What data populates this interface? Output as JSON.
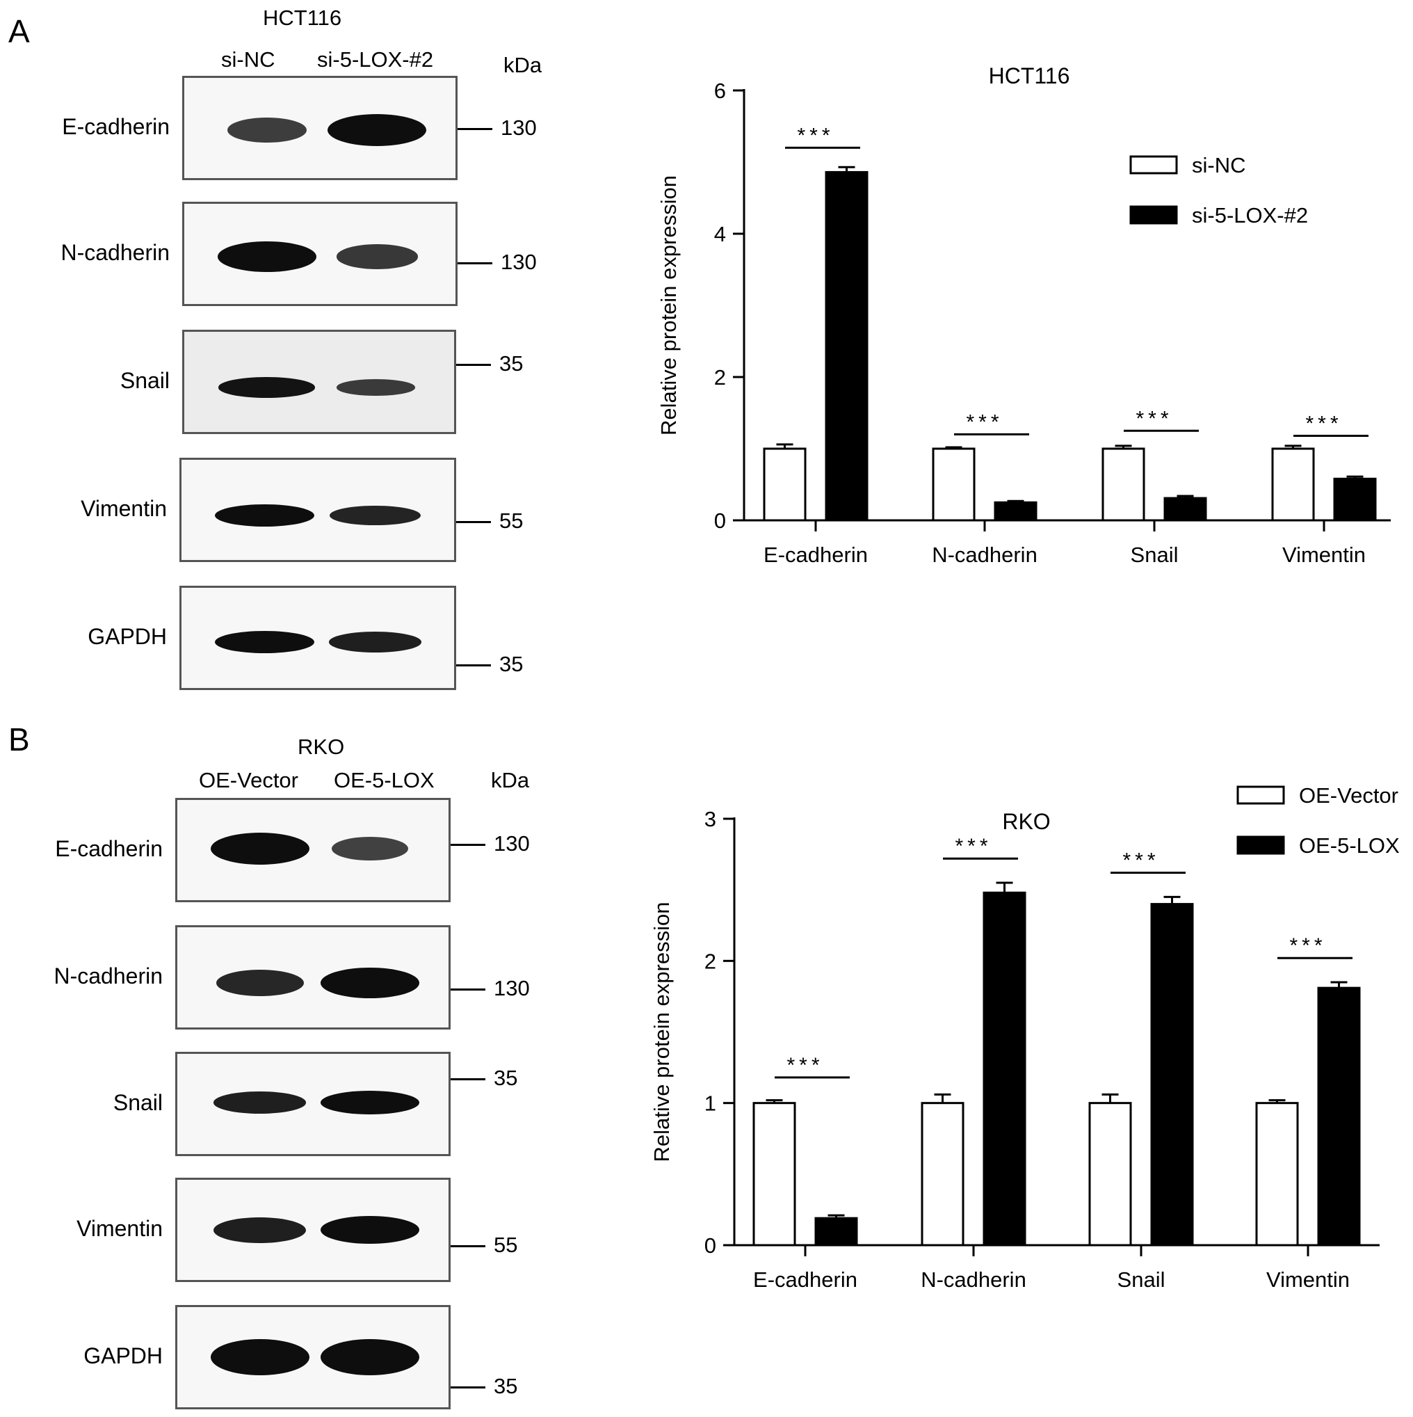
{
  "panel_a": {
    "letter": "A",
    "cell_line": "HCT116",
    "lanes": [
      "si-NC",
      "si-5-LOX-#2"
    ],
    "kda_label": "kDa",
    "blots": [
      {
        "protein": "E-cadherin",
        "marker": "130",
        "bands": [
          0.55,
          1.0
        ]
      },
      {
        "protein": "N-cadherin",
        "marker": "130",
        "bands": [
          1.0,
          0.6
        ]
      },
      {
        "protein": "Snail",
        "marker": "35",
        "bands": [
          0.95,
          0.55
        ]
      },
      {
        "protein": "Vimentin",
        "marker": "55",
        "bands": [
          1.0,
          0.8
        ]
      },
      {
        "protein": "GAPDH",
        "marker": "35",
        "bands": [
          1.0,
          0.85
        ]
      }
    ]
  },
  "panel_b": {
    "letter": "B",
    "cell_line": "RKO",
    "lanes": [
      "OE-Vector",
      "OE-5-LOX"
    ],
    "kda_label": "kDa",
    "blots": [
      {
        "protein": "E-cadherin",
        "marker": "130",
        "bands": [
          1.0,
          0.5
        ]
      },
      {
        "protein": "N-cadherin",
        "marker": "130",
        "bands": [
          0.75,
          1.0
        ]
      },
      {
        "protein": "Snail",
        "marker": "35",
        "bands": [
          0.85,
          1.0
        ]
      },
      {
        "protein": "Vimentin",
        "marker": "55",
        "bands": [
          0.85,
          1.0
        ]
      },
      {
        "protein": "GAPDH",
        "marker": "35",
        "bands": [
          1.0,
          1.0
        ]
      }
    ]
  },
  "chart_data": [
    {
      "type": "bar",
      "title": "HCT116",
      "ylabel": "Relative protein expression",
      "xlabel": "",
      "ylim": [
        0,
        6
      ],
      "yticks": [
        0,
        2,
        4,
        6
      ],
      "categories": [
        "E-cadherin",
        "N-cadherin",
        "Snail",
        "Vimentin"
      ],
      "series": [
        {
          "name": "si-NC",
          "values": [
            1.0,
            1.0,
            1.0,
            1.0
          ],
          "errors": [
            0.06,
            0.02,
            0.04,
            0.04
          ],
          "color": "#ffffff"
        },
        {
          "name": "si-5-LOX-#2",
          "values": [
            4.86,
            0.25,
            0.31,
            0.58
          ],
          "errors": [
            0.07,
            0.02,
            0.03,
            0.03
          ],
          "color": "#000000"
        }
      ],
      "significance": [
        "***",
        "***",
        "***",
        "***"
      ],
      "sig_levels": [
        5.2,
        1.2,
        1.25,
        1.18
      ],
      "legend_position": "top-right"
    },
    {
      "type": "bar",
      "title": "RKO",
      "ylabel": "Relative protein expression",
      "xlabel": "",
      "ylim": [
        0,
        3
      ],
      "yticks": [
        0,
        1,
        2,
        3
      ],
      "categories": [
        "E-cadherin",
        "N-cadherin",
        "Snail",
        "Vimentin"
      ],
      "series": [
        {
          "name": "OE-Vector",
          "values": [
            1.0,
            1.0,
            1.0,
            1.0
          ],
          "errors": [
            0.02,
            0.06,
            0.06,
            0.02
          ],
          "color": "#ffffff"
        },
        {
          "name": "OE-5-LOX",
          "values": [
            0.19,
            2.48,
            2.4,
            1.81
          ],
          "errors": [
            0.02,
            0.07,
            0.05,
            0.04
          ],
          "color": "#000000"
        }
      ],
      "significance": [
        "***",
        "***",
        "***",
        "***"
      ],
      "sig_levels": [
        1.18,
        2.72,
        2.62,
        2.02
      ],
      "legend_position": "top-right"
    }
  ]
}
